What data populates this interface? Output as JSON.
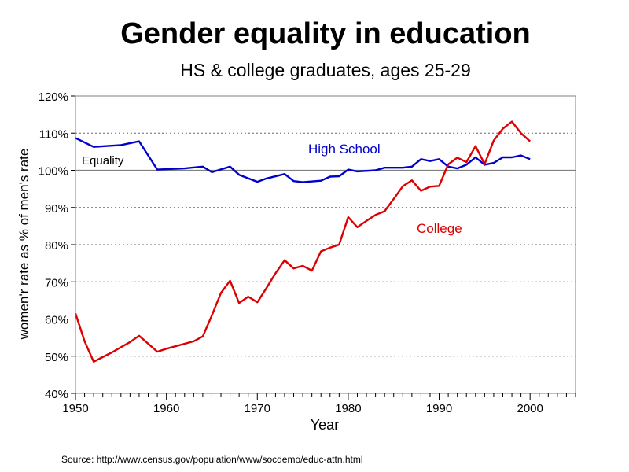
{
  "chart_data": {
    "type": "line",
    "title": "Gender equality in education",
    "subtitle": "HS & college graduates, ages 25-29",
    "xlabel": "Year",
    "ylabel": "women'r rate as % of men's rate",
    "source": "Source: http://www.census.gov/population/www/socdemo/educ-attn.html",
    "xlim": [
      1950,
      2005
    ],
    "ylim": [
      40,
      120
    ],
    "x_ticks": [
      1950,
      1960,
      1970,
      1980,
      1990,
      2000
    ],
    "y_ticks": [
      {
        "value": 40,
        "label": "40%"
      },
      {
        "value": 50,
        "label": "50%"
      },
      {
        "value": 60,
        "label": "60%"
      },
      {
        "value": 70,
        "label": "70%"
      },
      {
        "value": 80,
        "label": "80%"
      },
      {
        "value": 90,
        "label": "90%"
      },
      {
        "value": 100,
        "label": "100%"
      },
      {
        "value": 110,
        "label": "110%"
      },
      {
        "value": 120,
        "label": "120%"
      }
    ],
    "grid": "horizontal-dotted",
    "reference_line": {
      "value": 100,
      "label": "Equality",
      "color": "#808080"
    },
    "series": [
      {
        "name": "High School",
        "color": "#0000cc",
        "x": [
          1950,
          1952,
          1955,
          1957,
          1959,
          1962,
          1964,
          1965,
          1967,
          1968,
          1970,
          1971,
          1973,
          1974,
          1975,
          1977,
          1978,
          1979,
          1980,
          1981,
          1983,
          1984,
          1986,
          1987,
          1988,
          1989,
          1990,
          1991,
          1992,
          1993,
          1994,
          1995,
          1996,
          1997,
          1998,
          1999,
          2000
        ],
        "values": [
          108.7,
          106.3,
          106.8,
          107.8,
          100.2,
          100.5,
          101.0,
          99.5,
          101.0,
          98.8,
          96.9,
          97.8,
          99.0,
          97.1,
          96.8,
          97.2,
          98.3,
          98.4,
          100.2,
          99.7,
          100.0,
          100.7,
          100.7,
          101.0,
          103.0,
          102.5,
          103.0,
          101.0,
          100.5,
          101.5,
          103.5,
          101.5,
          102.0,
          103.5,
          103.5,
          104.0,
          103.0
        ],
        "label": "High School"
      },
      {
        "name": "College",
        "color": "#dd0000",
        "x": [
          1950,
          1951,
          1952,
          1954,
          1956,
          1957,
          1959,
          1960,
          1963,
          1964,
          1965,
          1966,
          1967,
          1968,
          1969,
          1970,
          1971,
          1972,
          1973,
          1974,
          1975,
          1976,
          1977,
          1978,
          1979,
          1980,
          1981,
          1982,
          1983,
          1984,
          1985,
          1986,
          1987,
          1988,
          1989,
          1990,
          1991,
          1992,
          1993,
          1994,
          1995,
          1996,
          1997,
          1998,
          1999,
          2000
        ],
        "values": [
          61.5,
          54.0,
          48.5,
          51.0,
          53.8,
          55.5,
          51.2,
          52.0,
          54.0,
          55.3,
          61.0,
          67.0,
          70.3,
          64.3,
          66.0,
          64.5,
          68.3,
          72.3,
          75.8,
          73.6,
          74.3,
          73.0,
          78.2,
          79.2,
          80.0,
          87.4,
          84.7,
          86.4,
          88.0,
          89.0,
          92.3,
          95.7,
          97.3,
          94.5,
          95.6,
          95.8,
          101.6,
          103.4,
          102.2,
          106.5,
          101.7,
          108.0,
          111.2,
          113.1,
          110.0,
          107.8
        ],
        "label": "College"
      }
    ]
  }
}
